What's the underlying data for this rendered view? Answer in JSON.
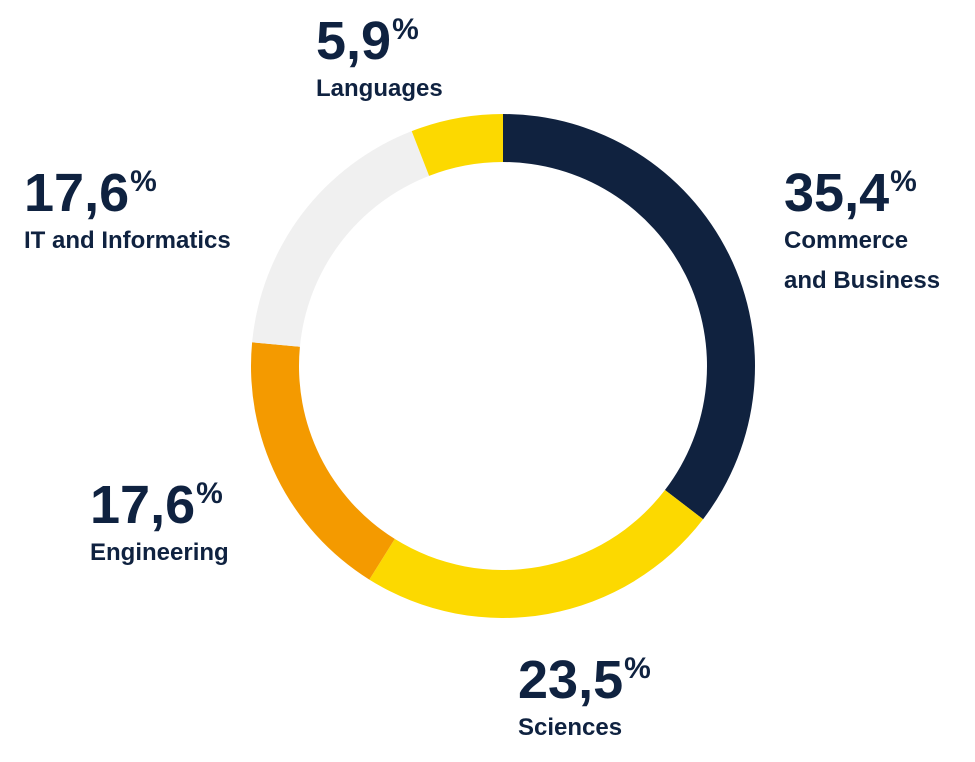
{
  "chart_data": {
    "type": "pie",
    "variant": "donut",
    "slices": [
      {
        "label": "Commerce and Business",
        "label_lines": [
          "Commerce",
          "and Business"
        ],
        "value": 35.4,
        "value_text": "35,4",
        "unit": "%",
        "color": "#10223f"
      },
      {
        "label": "Sciences",
        "label_lines": [
          "Sciences"
        ],
        "value": 23.5,
        "value_text": "23,5",
        "unit": "%",
        "color": "#fcd900"
      },
      {
        "label": "Engineering",
        "label_lines": [
          "Engineering"
        ],
        "value": 17.6,
        "value_text": "17,6",
        "unit": "%",
        "color": "#f49a00"
      },
      {
        "label": "IT and Informatics",
        "label_lines": [
          "IT and Informatics"
        ],
        "value": 17.6,
        "value_text": "17,6",
        "unit": "%",
        "color": "#f0f0f0"
      },
      {
        "label": "Languages",
        "label_lines": [
          "Languages"
        ],
        "value": 5.9,
        "value_text": "5,9",
        "unit": "%",
        "color": "#fcd900"
      }
    ],
    "start": "top",
    "direction": "clockwise",
    "legend": "none"
  },
  "colors": {
    "text": "#0f2240",
    "background": "#ffffff"
  }
}
